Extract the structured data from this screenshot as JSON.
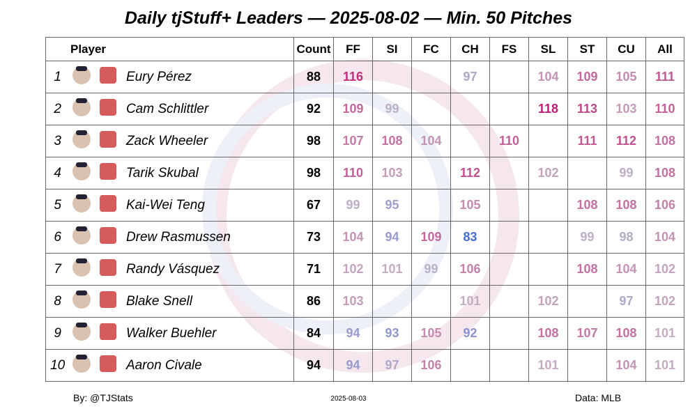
{
  "title": "Daily tjStuff+ Leaders — 2025-08-02 — Min. 50 Pitches",
  "table": {
    "columns": [
      "Player",
      "Count",
      "FF",
      "SI",
      "FC",
      "CH",
      "FS",
      "SL",
      "ST",
      "CU",
      "All"
    ],
    "rows": [
      {
        "rank": 1,
        "player": "Eury Pérez",
        "count": 88,
        "values": [
          116,
          null,
          null,
          97,
          null,
          104,
          109,
          105,
          111
        ]
      },
      {
        "rank": 2,
        "player": "Cam Schlittler",
        "count": 92,
        "values": [
          109,
          99,
          null,
          null,
          null,
          118,
          113,
          103,
          110
        ]
      },
      {
        "rank": 3,
        "player": "Zack Wheeler",
        "count": 98,
        "values": [
          107,
          108,
          104,
          null,
          110,
          null,
          111,
          112,
          108
        ]
      },
      {
        "rank": 4,
        "player": "Tarik Skubal",
        "count": 98,
        "values": [
          110,
          103,
          null,
          112,
          null,
          102,
          null,
          99,
          108
        ]
      },
      {
        "rank": 5,
        "player": "Kai-Wei Teng",
        "count": 67,
        "values": [
          99,
          95,
          null,
          105,
          null,
          null,
          108,
          108,
          106
        ]
      },
      {
        "rank": 6,
        "player": "Drew Rasmussen",
        "count": 73,
        "values": [
          104,
          94,
          109,
          83,
          null,
          null,
          99,
          98,
          104
        ]
      },
      {
        "rank": 7,
        "player": "Randy Vásquez",
        "count": 71,
        "values": [
          102,
          101,
          99,
          106,
          null,
          null,
          108,
          104,
          102
        ]
      },
      {
        "rank": 8,
        "player": "Blake Snell",
        "count": 86,
        "values": [
          103,
          null,
          null,
          101,
          null,
          102,
          null,
          97,
          102
        ]
      },
      {
        "rank": 9,
        "player": "Walker Buehler",
        "count": 84,
        "values": [
          94,
          93,
          105,
          92,
          null,
          108,
          107,
          108,
          101
        ]
      },
      {
        "rank": 10,
        "player": "Aaron Civale",
        "count": 94,
        "values": [
          94,
          97,
          106,
          null,
          null,
          101,
          null,
          104,
          101
        ]
      }
    ]
  },
  "footer": {
    "left": "By: @TJStats",
    "center": "2025-08-03",
    "right": "Data: MLB"
  }
}
